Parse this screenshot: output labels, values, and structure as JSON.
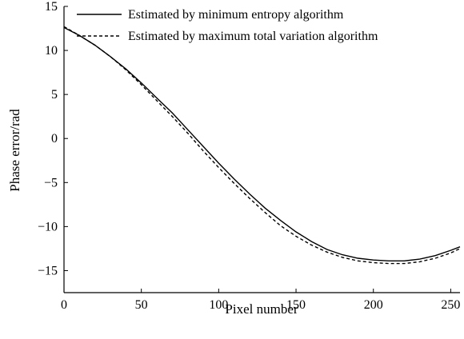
{
  "chart_data": {
    "type": "line",
    "title": "",
    "xlabel": "Pixel number",
    "ylabel": "Phase error/rad",
    "xlim": [
      0,
      256
    ],
    "ylim": [
      -17.5,
      15
    ],
    "xticks": [
      0,
      50,
      100,
      150,
      200,
      250
    ],
    "yticks": [
      15,
      10,
      5,
      0,
      -5,
      -10,
      -15
    ],
    "grid": false,
    "legend_position": "top-right",
    "series": [
      {
        "name": "Estimated by minimum entropy algorithm",
        "style": "solid",
        "color": "#000000",
        "x": [
          0,
          10,
          20,
          30,
          40,
          50,
          60,
          70,
          80,
          90,
          100,
          110,
          120,
          130,
          140,
          150,
          160,
          170,
          180,
          190,
          200,
          210,
          220,
          230,
          240,
          250,
          256
        ],
        "y": [
          12.6,
          11.7,
          10.6,
          9.3,
          7.9,
          6.3,
          4.6,
          2.9,
          1.0,
          -0.9,
          -2.8,
          -4.6,
          -6.3,
          -7.9,
          -9.3,
          -10.6,
          -11.7,
          -12.6,
          -13.2,
          -13.6,
          -13.8,
          -13.9,
          -13.9,
          -13.7,
          -13.3,
          -12.7,
          -12.3
        ]
      },
      {
        "name": "Estimated by maximum total variation algorithm",
        "style": "dashed",
        "color": "#000000",
        "x": [
          0,
          10,
          20,
          30,
          40,
          50,
          60,
          70,
          80,
          90,
          100,
          110,
          120,
          130,
          140,
          150,
          160,
          170,
          180,
          190,
          200,
          210,
          220,
          230,
          240,
          250,
          256
        ],
        "y": [
          12.7,
          11.7,
          10.6,
          9.3,
          7.8,
          6.1,
          4.3,
          2.5,
          0.6,
          -1.4,
          -3.3,
          -5.1,
          -6.8,
          -8.4,
          -9.9,
          -11.1,
          -12.1,
          -12.9,
          -13.5,
          -13.9,
          -14.1,
          -14.2,
          -14.2,
          -14.0,
          -13.6,
          -13.0,
          -12.5
        ]
      }
    ]
  }
}
